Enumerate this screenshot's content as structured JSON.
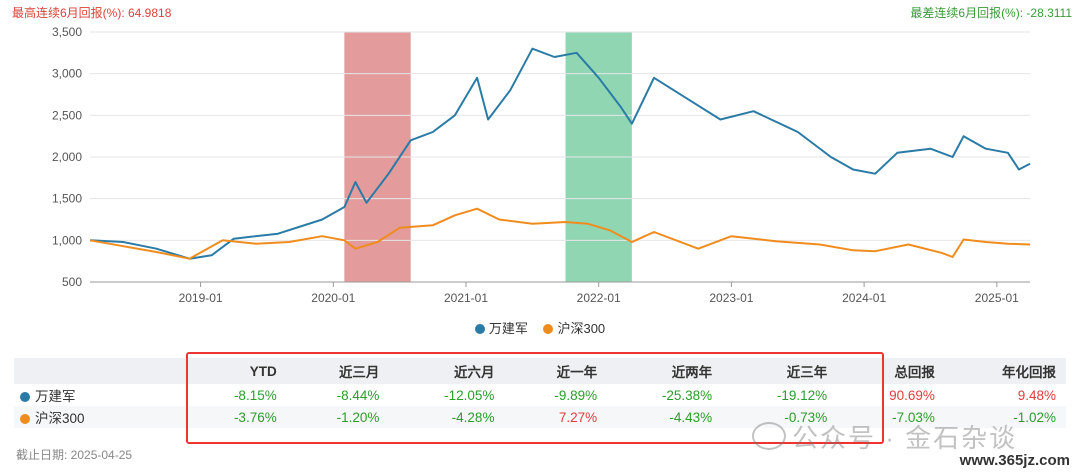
{
  "header": {
    "max_label": "最高连续6月回报(%): 64.9818",
    "min_label": "最差连续6月回报(%): -28.3111"
  },
  "chart_data": {
    "type": "line",
    "x_ticks": [
      "2019-01",
      "2020-01",
      "2021-01",
      "2022-01",
      "2023-01",
      "2024-01",
      "2025-01"
    ],
    "y_ticks": [
      "3,500",
      "3,000",
      "2,500",
      "2,000",
      "1,500",
      "1,000",
      "500"
    ],
    "ylim": [
      500,
      3500
    ],
    "xlim": [
      "2018-03",
      "2025-04"
    ],
    "shaded_periods": [
      {
        "name": "最高连续6月回报",
        "from": "2020-02",
        "to": "2020-08",
        "color": "#d97b79"
      },
      {
        "name": "最差连续6月回报",
        "from": "2021-10",
        "to": "2022-04",
        "color": "#6cc89a"
      }
    ],
    "series": [
      {
        "name": "万建军",
        "color": "#2a7ba6",
        "points": [
          [
            "2018-03",
            1000
          ],
          [
            "2018-06",
            980
          ],
          [
            "2018-09",
            900
          ],
          [
            "2018-12",
            780
          ],
          [
            "2019-02",
            820
          ],
          [
            "2019-04",
            1020
          ],
          [
            "2019-08",
            1080
          ],
          [
            "2019-12",
            1250
          ],
          [
            "2020-02",
            1400
          ],
          [
            "2020-03",
            1700
          ],
          [
            "2020-04",
            1450
          ],
          [
            "2020-06",
            1800
          ],
          [
            "2020-08",
            2200
          ],
          [
            "2020-10",
            2300
          ],
          [
            "2020-12",
            2500
          ],
          [
            "2021-02",
            2950
          ],
          [
            "2021-03",
            2450
          ],
          [
            "2021-05",
            2800
          ],
          [
            "2021-07",
            3300
          ],
          [
            "2021-09",
            3200
          ],
          [
            "2021-11",
            3250
          ],
          [
            "2022-01",
            2950
          ],
          [
            "2022-03",
            2600
          ],
          [
            "2022-04",
            2400
          ],
          [
            "2022-06",
            2950
          ],
          [
            "2022-09",
            2700
          ],
          [
            "2022-12",
            2450
          ],
          [
            "2023-03",
            2550
          ],
          [
            "2023-07",
            2300
          ],
          [
            "2023-10",
            2000
          ],
          [
            "2023-12",
            1850
          ],
          [
            "2024-02",
            1800
          ],
          [
            "2024-04",
            2050
          ],
          [
            "2024-07",
            2100
          ],
          [
            "2024-09",
            2000
          ],
          [
            "2024-10",
            2250
          ],
          [
            "2024-12",
            2100
          ],
          [
            "2025-02",
            2050
          ],
          [
            "2025-03",
            1850
          ],
          [
            "2025-04",
            1920
          ]
        ]
      },
      {
        "name": "沪深300",
        "color": "#f08c1e",
        "points": [
          [
            "2018-03",
            1000
          ],
          [
            "2018-06",
            930
          ],
          [
            "2018-09",
            860
          ],
          [
            "2018-12",
            780
          ],
          [
            "2019-03",
            1000
          ],
          [
            "2019-06",
            960
          ],
          [
            "2019-09",
            980
          ],
          [
            "2019-12",
            1050
          ],
          [
            "2020-02",
            1000
          ],
          [
            "2020-03",
            900
          ],
          [
            "2020-05",
            980
          ],
          [
            "2020-07",
            1150
          ],
          [
            "2020-10",
            1180
          ],
          [
            "2020-12",
            1300
          ],
          [
            "2021-02",
            1380
          ],
          [
            "2021-04",
            1250
          ],
          [
            "2021-07",
            1200
          ],
          [
            "2021-10",
            1220
          ],
          [
            "2021-12",
            1200
          ],
          [
            "2022-02",
            1120
          ],
          [
            "2022-04",
            980
          ],
          [
            "2022-06",
            1100
          ],
          [
            "2022-10",
            900
          ],
          [
            "2023-01",
            1050
          ],
          [
            "2023-05",
            990
          ],
          [
            "2023-09",
            950
          ],
          [
            "2023-12",
            880
          ],
          [
            "2024-02",
            870
          ],
          [
            "2024-05",
            950
          ],
          [
            "2024-08",
            850
          ],
          [
            "2024-09",
            800
          ],
          [
            "2024-10",
            1010
          ],
          [
            "2024-12",
            980
          ],
          [
            "2025-02",
            960
          ],
          [
            "2025-04",
            950
          ]
        ]
      }
    ]
  },
  "legend": [
    {
      "name": "万建军",
      "color": "#2a7ba6"
    },
    {
      "name": "沪深300",
      "color": "#f08c1e"
    }
  ],
  "table": {
    "headers": [
      "",
      "YTD",
      "近三月",
      "近六月",
      "近一年",
      "近两年",
      "近三年",
      "总回报",
      "年化回报"
    ],
    "rows": [
      {
        "name": "万建军",
        "color": "#2a7ba6",
        "values": [
          "-8.15%",
          "-8.44%",
          "-12.05%",
          "-9.89%",
          "-25.38%",
          "-19.12%",
          "90.69%",
          "9.48%"
        ]
      },
      {
        "name": "沪深300",
        "color": "#f08c1e",
        "values": [
          "-3.76%",
          "-1.20%",
          "-4.28%",
          "7.27%",
          "-4.43%",
          "-0.73%",
          "-7.03%",
          "-1.02%"
        ]
      }
    ]
  },
  "footer": {
    "date_label": "截止日期: 2025-04-25"
  },
  "watermark": {
    "text": "公众号 · 金石杂谈",
    "site": "www.365jz.com"
  }
}
